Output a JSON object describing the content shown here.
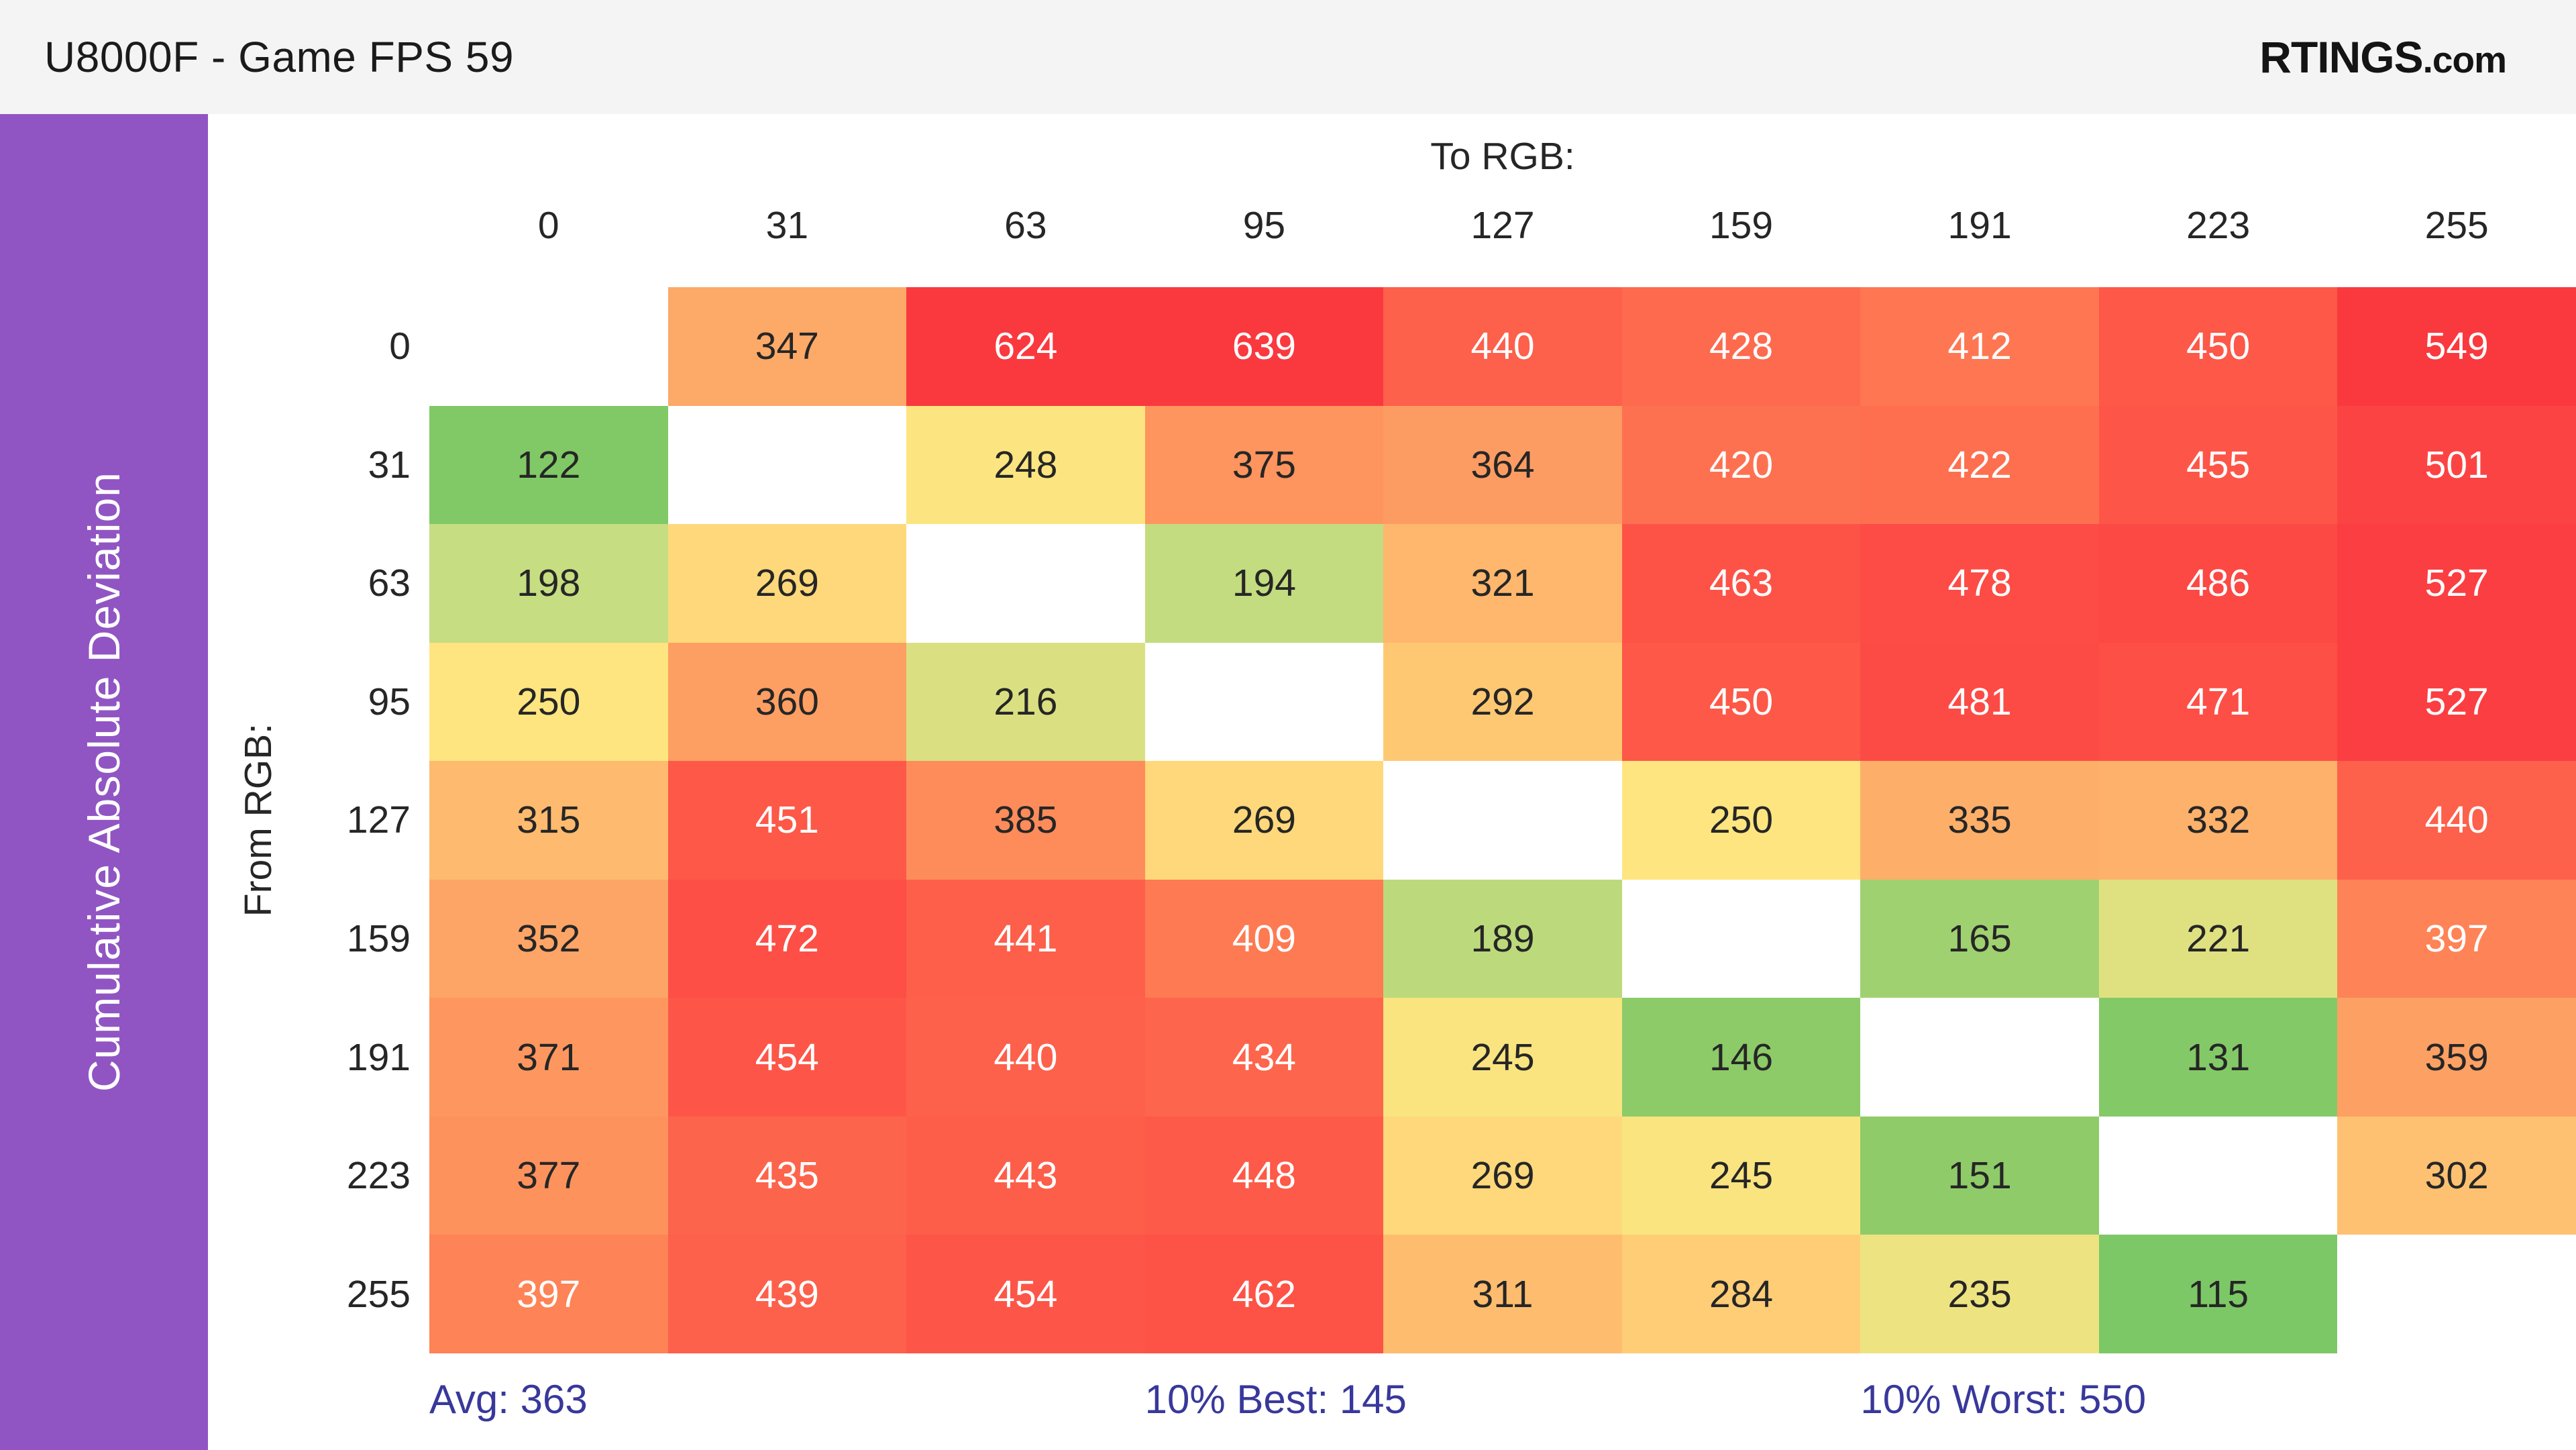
{
  "header": {
    "title": "U8000F - Game FPS 59",
    "logo_main": "RTINGS",
    "logo_suffix": ".com"
  },
  "sidebar": {
    "label": "Cumulative Absolute Deviation"
  },
  "chart_data": {
    "type": "heatmap",
    "title": "U8000F - Game FPS 59",
    "col_axis_title": "To RGB:",
    "row_axis_title": "From RGB:",
    "col_labels": [
      "0",
      "31",
      "63",
      "95",
      "127",
      "159",
      "191",
      "223",
      "255"
    ],
    "row_labels": [
      "0",
      "31",
      "63",
      "95",
      "127",
      "159",
      "191",
      "223",
      "255"
    ],
    "values": [
      [
        null,
        347,
        624,
        639,
        440,
        428,
        412,
        450,
        549
      ],
      [
        122,
        null,
        248,
        375,
        364,
        420,
        422,
        455,
        501
      ],
      [
        198,
        269,
        null,
        194,
        321,
        463,
        478,
        486,
        527
      ],
      [
        250,
        360,
        216,
        null,
        292,
        450,
        481,
        471,
        527
      ],
      [
        315,
        451,
        385,
        269,
        null,
        250,
        335,
        332,
        440
      ],
      [
        352,
        472,
        441,
        409,
        189,
        null,
        165,
        221,
        397
      ],
      [
        371,
        454,
        440,
        434,
        245,
        146,
        null,
        131,
        359
      ],
      [
        377,
        435,
        443,
        448,
        269,
        245,
        151,
        null,
        302
      ],
      [
        397,
        439,
        454,
        462,
        311,
        284,
        235,
        115,
        null
      ]
    ],
    "stats": {
      "avg": "Avg: 363",
      "best": "10% Best: 145",
      "worst": "10% Worst: 550"
    },
    "color_scale": {
      "stops": [
        [
          115,
          "#7cc866"
        ],
        [
          150,
          "#8ecb68"
        ],
        [
          200,
          "#c9de82"
        ],
        [
          250,
          "#fee580"
        ],
        [
          300,
          "#fec271"
        ],
        [
          350,
          "#fda767"
        ],
        [
          400,
          "#fe8155"
        ],
        [
          450,
          "#fd5848"
        ],
        [
          500,
          "#fc4343"
        ],
        [
          550,
          "#fa393f"
        ]
      ],
      "white_text_threshold": 390
    },
    "colors": {
      "accent_purple": "#9155c3",
      "header_bg": "#f4f4f4",
      "stats_text": "#38389b",
      "cell_dark_text": "#262626",
      "cell_light_text": "#ffffff",
      "blank_cell": "#ffffff"
    }
  }
}
